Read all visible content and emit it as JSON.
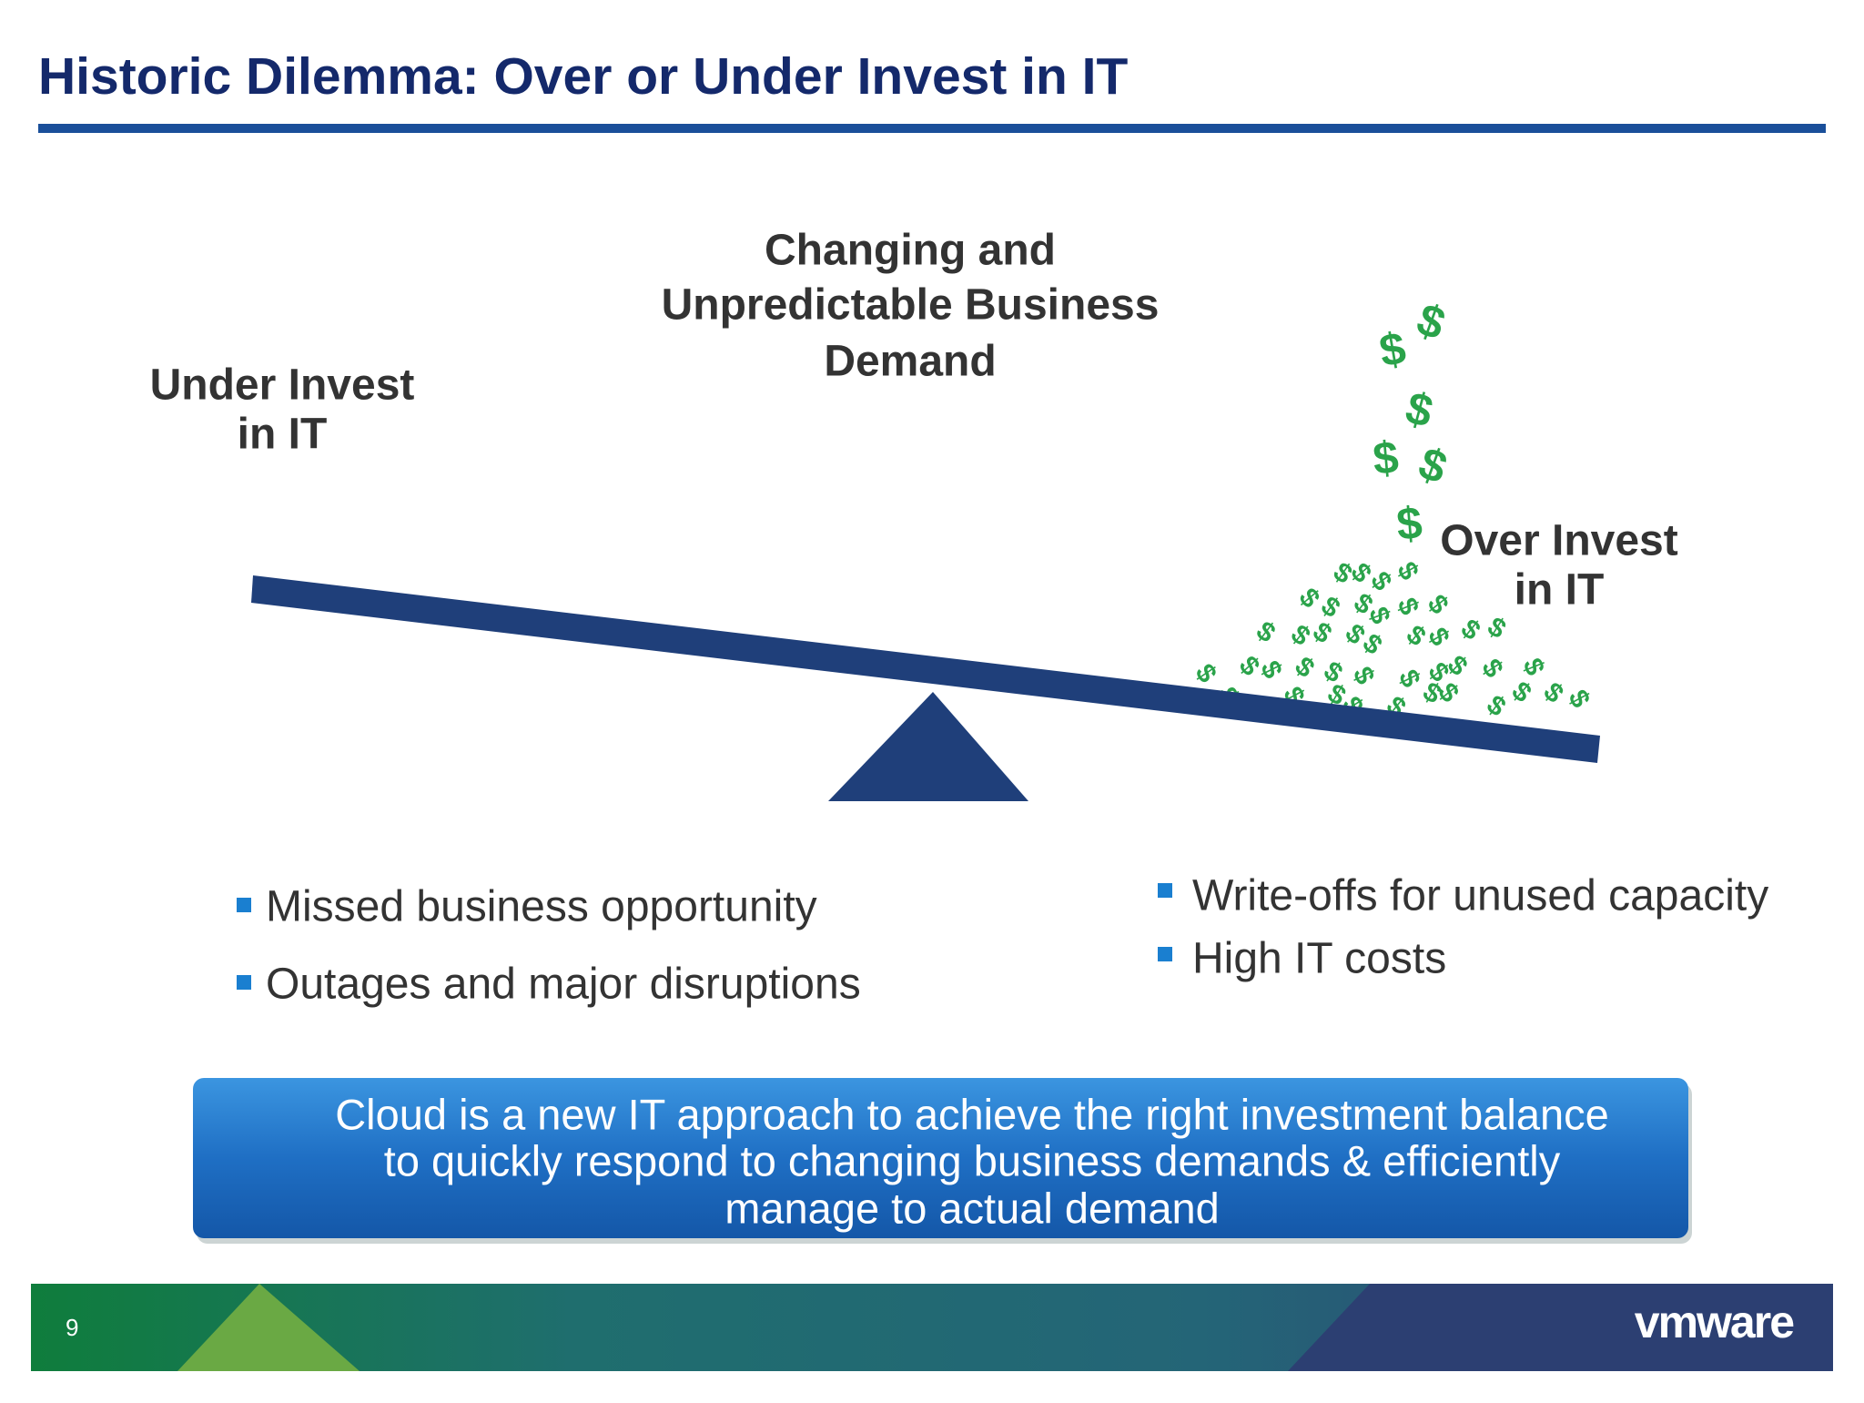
{
  "header": {
    "title": "Historic Dilemma: Over or Under Invest in IT"
  },
  "diagram": {
    "center_label": [
      "Changing and",
      "Unpredictable Business",
      "Demand"
    ],
    "left_label": [
      "Under Invest",
      "in IT"
    ],
    "right_label": [
      "Over Invest",
      "in IT"
    ],
    "money_symbol": "$"
  },
  "bullets_left": [
    "Missed business opportunity",
    "Outages and major disruptions"
  ],
  "bullets_right": [
    "Write-offs for unused capacity",
    "High IT costs"
  ],
  "callout": [
    "Cloud is a new IT approach to achieve the right investment balance",
    "to quickly respond to changing business demands & efficiently",
    "manage to actual demand"
  ],
  "footer": {
    "page_number": "9",
    "logo": "vmware"
  }
}
